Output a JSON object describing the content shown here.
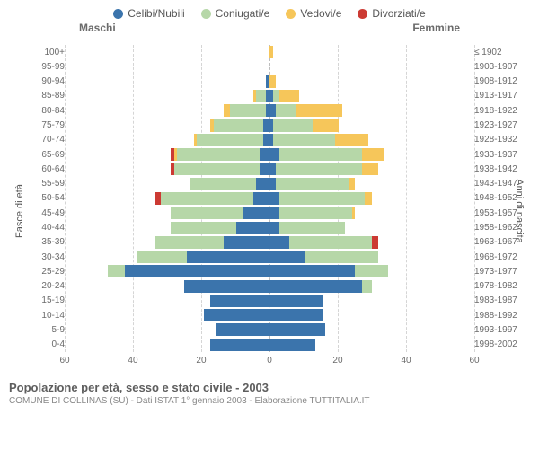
{
  "legend": {
    "items": [
      {
        "label": "Celibi/Nubili",
        "color": "#3b74ac"
      },
      {
        "label": "Coniugati/e",
        "color": "#b6d7a8"
      },
      {
        "label": "Vedovi/e",
        "color": "#f6c65a"
      },
      {
        "label": "Divorziati/e",
        "color": "#cc3a33"
      }
    ]
  },
  "titles": {
    "left": "Maschi",
    "right": "Femmine"
  },
  "axis": {
    "y_left": "Fasce di età",
    "y_right": "Anni di nascita",
    "x_max": 60,
    "x_ticks": [
      60,
      40,
      20,
      0,
      20,
      40,
      60
    ],
    "tick_fontsize": 10,
    "label_fontsize": 11,
    "grid_color": "#d5d5d5",
    "center_color": "#bdbdbd"
  },
  "footer": {
    "line1": "Popolazione per età, sesso e stato civile - 2003",
    "line2": "COMUNE DI COLLINAS (SU) - Dati ISTAT 1° gennaio 2003 - Elaborazione TUTTITALIA.IT"
  },
  "colors": {
    "celibi": "#3b74ac",
    "coniugati": "#b6d7a8",
    "vedovi": "#f6c65a",
    "divorziati": "#cc3a33",
    "background": "#ffffff"
  },
  "rows": [
    {
      "age": "100+",
      "birth": "≤ 1902",
      "m": {
        "c": 0,
        "g": 0,
        "v": 0,
        "d": 0
      },
      "f": {
        "c": 0,
        "g": 0,
        "v": 1,
        "d": 0
      }
    },
    {
      "age": "95-99",
      "birth": "1903-1907",
      "m": {
        "c": 0,
        "g": 0,
        "v": 0,
        "d": 0
      },
      "f": {
        "c": 0,
        "g": 0,
        "v": 0,
        "d": 0
      }
    },
    {
      "age": "90-94",
      "birth": "1908-1912",
      "m": {
        "c": 1,
        "g": 0,
        "v": 0,
        "d": 0
      },
      "f": {
        "c": 0,
        "g": 0,
        "v": 2,
        "d": 0
      }
    },
    {
      "age": "85-89",
      "birth": "1913-1917",
      "m": {
        "c": 1,
        "g": 3,
        "v": 1,
        "d": 0
      },
      "f": {
        "c": 1,
        "g": 2,
        "v": 6,
        "d": 0
      }
    },
    {
      "age": "80-84",
      "birth": "1918-1922",
      "m": {
        "c": 1,
        "g": 11,
        "v": 2,
        "d": 0
      },
      "f": {
        "c": 2,
        "g": 6,
        "v": 14,
        "d": 0
      }
    },
    {
      "age": "75-79",
      "birth": "1923-1927",
      "m": {
        "c": 2,
        "g": 15,
        "v": 1,
        "d": 0
      },
      "f": {
        "c": 1,
        "g": 12,
        "v": 8,
        "d": 0
      }
    },
    {
      "age": "70-74",
      "birth": "1928-1932",
      "m": {
        "c": 2,
        "g": 20,
        "v": 1,
        "d": 0
      },
      "f": {
        "c": 1,
        "g": 19,
        "v": 10,
        "d": 0
      }
    },
    {
      "age": "65-69",
      "birth": "1933-1937",
      "m": {
        "c": 3,
        "g": 25,
        "v": 1,
        "d": 1
      },
      "f": {
        "c": 3,
        "g": 25,
        "v": 7,
        "d": 0
      }
    },
    {
      "age": "60-64",
      "birth": "1938-1942",
      "m": {
        "c": 3,
        "g": 26,
        "v": 0,
        "d": 1
      },
      "f": {
        "c": 2,
        "g": 26,
        "v": 5,
        "d": 0
      }
    },
    {
      "age": "55-59",
      "birth": "1943-1947",
      "m": {
        "c": 4,
        "g": 20,
        "v": 0,
        "d": 0
      },
      "f": {
        "c": 2,
        "g": 22,
        "v": 2,
        "d": 0
      }
    },
    {
      "age": "50-54",
      "birth": "1948-1952",
      "m": {
        "c": 5,
        "g": 28,
        "v": 0,
        "d": 2
      },
      "f": {
        "c": 3,
        "g": 26,
        "v": 2,
        "d": 0
      }
    },
    {
      "age": "45-49",
      "birth": "1953-1957",
      "m": {
        "c": 8,
        "g": 22,
        "v": 0,
        "d": 0
      },
      "f": {
        "c": 3,
        "g": 22,
        "v": 1,
        "d": 0
      }
    },
    {
      "age": "40-44",
      "birth": "1958-1962",
      "m": {
        "c": 10,
        "g": 20,
        "v": 0,
        "d": 0
      },
      "f": {
        "c": 3,
        "g": 20,
        "v": 0,
        "d": 0
      }
    },
    {
      "age": "35-39",
      "birth": "1963-1967",
      "m": {
        "c": 14,
        "g": 21,
        "v": 0,
        "d": 0
      },
      "f": {
        "c": 6,
        "g": 25,
        "v": 0,
        "d": 2
      }
    },
    {
      "age": "30-34",
      "birth": "1968-1972",
      "m": {
        "c": 25,
        "g": 15,
        "v": 0,
        "d": 0
      },
      "f": {
        "c": 11,
        "g": 22,
        "v": 0,
        "d": 0
      }
    },
    {
      "age": "25-29",
      "birth": "1973-1977",
      "m": {
        "c": 44,
        "g": 5,
        "v": 0,
        "d": 0
      },
      "f": {
        "c": 26,
        "g": 10,
        "v": 0,
        "d": 0
      }
    },
    {
      "age": "20-24",
      "birth": "1978-1982",
      "m": {
        "c": 26,
        "g": 0,
        "v": 0,
        "d": 0
      },
      "f": {
        "c": 28,
        "g": 3,
        "v": 0,
        "d": 0
      }
    },
    {
      "age": "15-19",
      "birth": "1983-1987",
      "m": {
        "c": 18,
        "g": 0,
        "v": 0,
        "d": 0
      },
      "f": {
        "c": 16,
        "g": 0,
        "v": 0,
        "d": 0
      }
    },
    {
      "age": "10-14",
      "birth": "1988-1992",
      "m": {
        "c": 20,
        "g": 0,
        "v": 0,
        "d": 0
      },
      "f": {
        "c": 16,
        "g": 0,
        "v": 0,
        "d": 0
      }
    },
    {
      "age": "5-9",
      "birth": "1993-1997",
      "m": {
        "c": 16,
        "g": 0,
        "v": 0,
        "d": 0
      },
      "f": {
        "c": 17,
        "g": 0,
        "v": 0,
        "d": 0
      }
    },
    {
      "age": "0-4",
      "birth": "1998-2002",
      "m": {
        "c": 18,
        "g": 0,
        "v": 0,
        "d": 0
      },
      "f": {
        "c": 14,
        "g": 0,
        "v": 0,
        "d": 0
      }
    }
  ]
}
